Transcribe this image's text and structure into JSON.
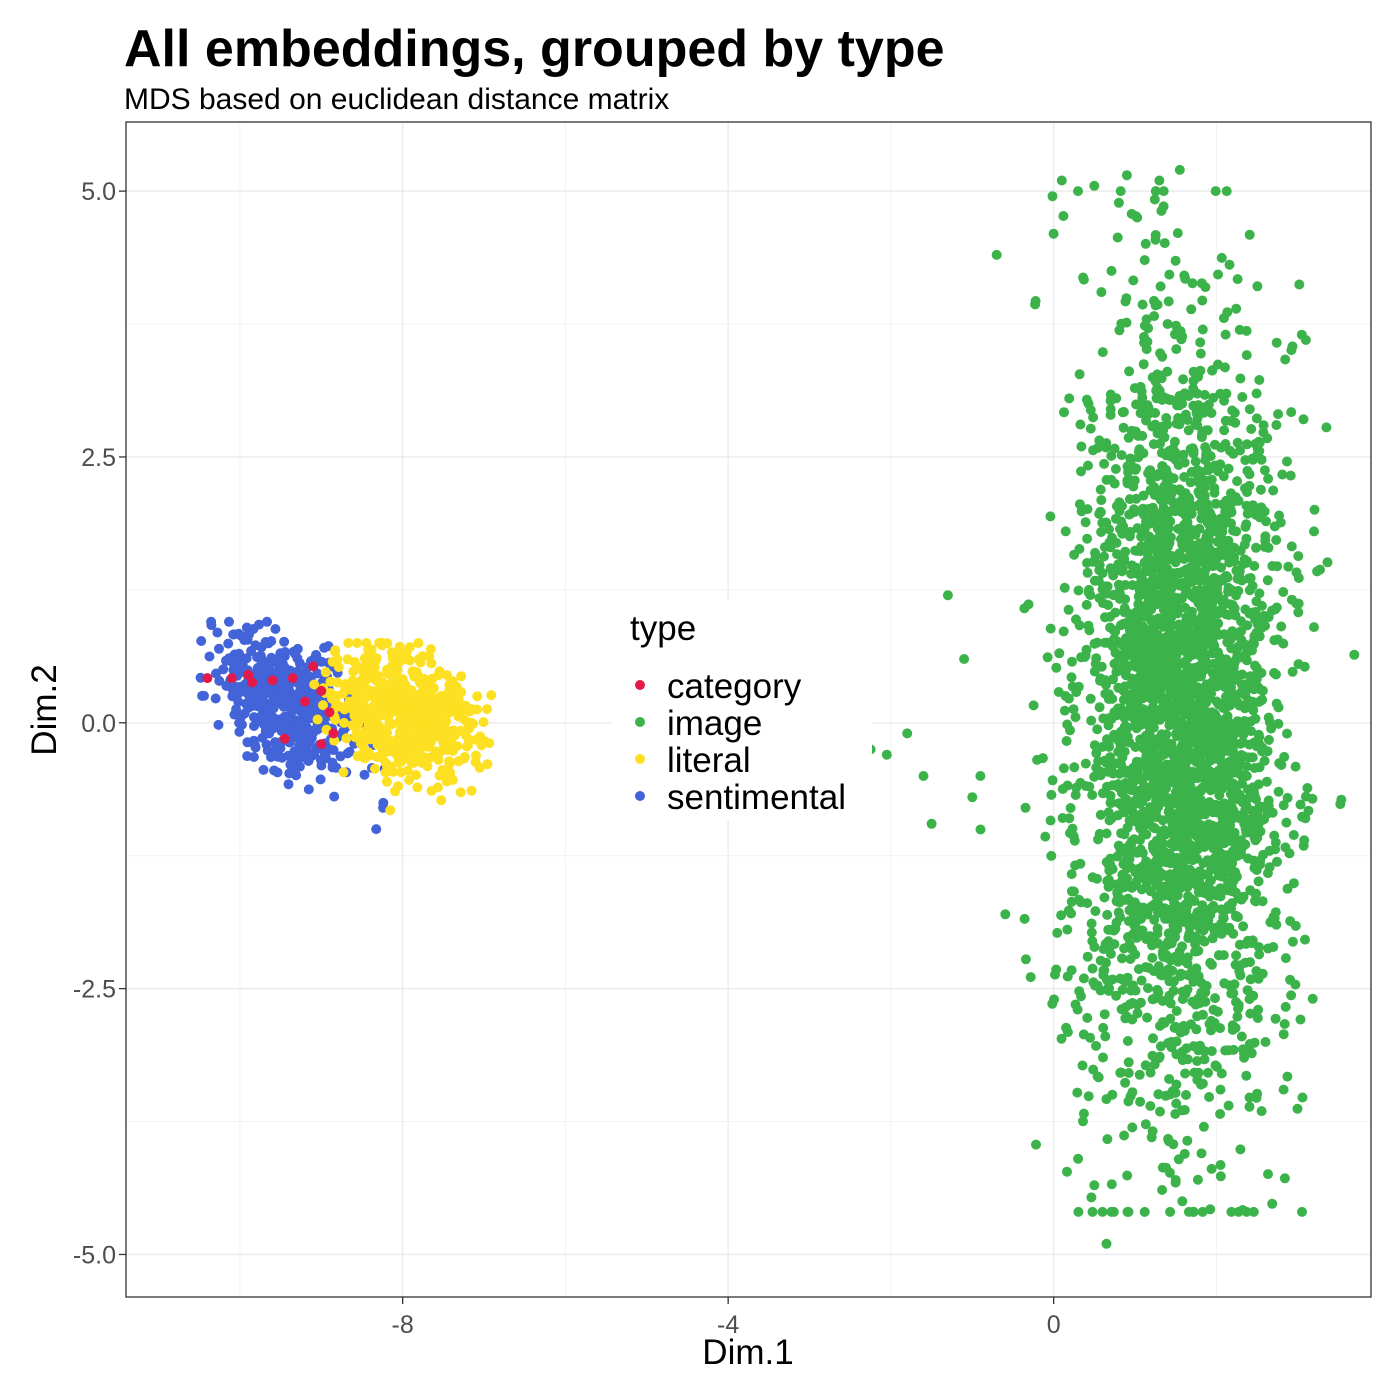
{
  "chart_data": {
    "type": "scatter",
    "title": "All embeddings, grouped by type",
    "subtitle": "MDS based on euclidean distance matrix",
    "xlabel": "Dim.1",
    "ylabel": "Dim.2",
    "xlim": [
      -11.4,
      3.9
    ],
    "ylim": [
      -5.4,
      5.65
    ],
    "x_ticks": [
      -8,
      -4,
      0
    ],
    "x_tick_labels": [
      "-8",
      "-4",
      "0"
    ],
    "y_ticks": [
      5.0,
      2.5,
      0.0,
      -2.5,
      -5.0
    ],
    "y_tick_labels": [
      "5.0",
      "2.5",
      "0.0",
      "-2.5",
      "-5.0"
    ],
    "grid": true,
    "legend": {
      "title": "type",
      "placement": "inside-center"
    },
    "series": [
      {
        "name": "category",
        "color": "#e41a4b",
        "points": [
          [
            -10.4,
            0.42
          ],
          [
            -10.1,
            0.42
          ],
          [
            -9.9,
            0.45
          ],
          [
            -9.85,
            0.38
          ],
          [
            -9.6,
            0.4
          ],
          [
            -9.35,
            0.42
          ],
          [
            -9.1,
            0.53
          ],
          [
            -9.0,
            0.3
          ],
          [
            -9.2,
            0.2
          ],
          [
            -8.9,
            0.1
          ],
          [
            -9.45,
            -0.15
          ],
          [
            -9.0,
            -0.2
          ],
          [
            -8.85,
            -0.1
          ]
        ]
      },
      {
        "name": "image",
        "color": "#3cb34a",
        "center": [
          1.55,
          0.0
        ],
        "spread": [
          0.58,
          1.75
        ],
        "count": 3200,
        "outliers": [
          [
            0.1,
            5.1
          ],
          [
            0.5,
            5.05
          ],
          [
            0.9,
            5.15
          ],
          [
            1.3,
            5.1
          ],
          [
            1.55,
            5.2
          ],
          [
            -0.7,
            4.4
          ],
          [
            0.0,
            4.6
          ],
          [
            3.1,
            3.6
          ],
          [
            3.05,
            3.65
          ],
          [
            3.2,
            1.8
          ],
          [
            3.2,
            0.9
          ],
          [
            -2.05,
            -0.3
          ],
          [
            -1.8,
            -0.1
          ],
          [
            -1.6,
            -0.5
          ],
          [
            -1.5,
            -0.95
          ],
          [
            -1.3,
            1.2
          ],
          [
            -1.1,
            0.6
          ],
          [
            -1.0,
            -0.7
          ],
          [
            -0.9,
            -0.5
          ],
          [
            -2.25,
            -0.25
          ],
          [
            0.65,
            -4.9
          ],
          [
            0.3,
            -4.1
          ],
          [
            0.5,
            -4.35
          ],
          [
            2.15,
            -3.6
          ],
          [
            2.05,
            -3.45
          ],
          [
            1.5,
            -4.3
          ]
        ]
      },
      {
        "name": "literal",
        "color": "#fde021",
        "center": [
          -8.0,
          0.08
        ],
        "spread": [
          0.45,
          0.28
        ],
        "count": 600
      },
      {
        "name": "sentimental",
        "color": "#4363d8",
        "center": [
          -9.4,
          0.15
        ],
        "spread": [
          0.42,
          0.3
        ],
        "count": 470
      }
    ]
  }
}
